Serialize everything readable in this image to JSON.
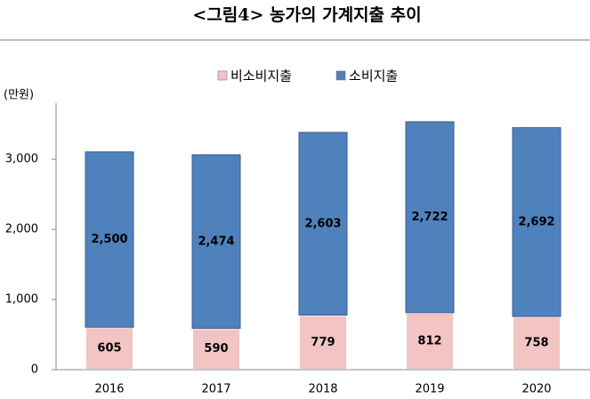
{
  "chart_data": {
    "type": "stacked_bar",
    "title": "<그림4> 농가의 가계지출 추이",
    "y_label": "(만원)",
    "categories": [
      "2016",
      "2017",
      "2018",
      "2019",
      "2020"
    ],
    "series": [
      {
        "name": "비소비지출",
        "color": "#f2c4c4",
        "values": [
          605,
          590,
          779,
          812,
          758
        ]
      },
      {
        "name": "소비지출",
        "color": "#4f81bd",
        "values": [
          2500,
          2474,
          2603,
          2722,
          2692
        ],
        "value_labels": [
          "2,500",
          "2,474",
          "2,603",
          "2,722",
          "2,692"
        ]
      }
    ],
    "ylim": [
      0,
      3800
    ],
    "yticks": [
      0,
      {
        "value": 1000,
        "label": "1,000"
      },
      {
        "value": 2000,
        "label": "2,000"
      },
      {
        "value": 3000,
        "label": "3,000"
      }
    ],
    "legend": "top"
  }
}
